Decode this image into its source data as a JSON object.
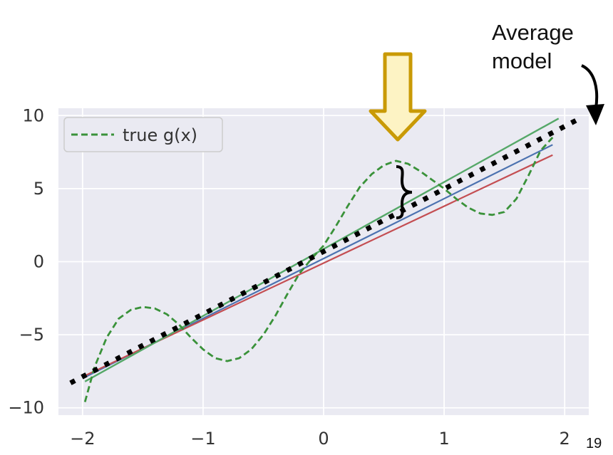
{
  "annotation": {
    "average_model": "Average\nmodel"
  },
  "page_number": "19",
  "legend": {
    "true_label": "true g(x)",
    "placement": "top-left"
  },
  "colors": {
    "background": "#eaeaf2",
    "grid": "#ffffff",
    "true": "#3a923a",
    "model_blue": "#4c72b0",
    "model_red": "#c44e52",
    "model_green": "#55a868",
    "average": "#000000",
    "arrow_fill": "#fdf3c4",
    "arrow_stroke": "#c99a06"
  },
  "chart_data": {
    "type": "line",
    "title": "",
    "xlabel": "",
    "ylabel": "",
    "xlim": [
      -2.2,
      2.2
    ],
    "ylim": [
      -10.5,
      10.5
    ],
    "grid": true,
    "x_ticks": [
      -2,
      -1,
      0,
      1,
      2
    ],
    "x_tick_labels": [
      "−2",
      "−1",
      "0",
      "1",
      "2"
    ],
    "y_ticks": [
      -10,
      -5,
      0,
      5,
      10
    ],
    "y_tick_labels": [
      "−10",
      "−5",
      "0",
      "5",
      "10"
    ],
    "series": [
      {
        "name": "true g(x)",
        "style": "dashed",
        "x": [
          -1.98,
          -1.9,
          -1.8,
          -1.7,
          -1.6,
          -1.5,
          -1.4,
          -1.3,
          -1.2,
          -1.1,
          -1.0,
          -0.9,
          -0.8,
          -0.7,
          -0.6,
          -0.5,
          -0.4,
          -0.3,
          -0.2,
          -0.1,
          0.0,
          0.1,
          0.2,
          0.3,
          0.4,
          0.5,
          0.6,
          0.7,
          0.8,
          0.9,
          1.0,
          1.1,
          1.2,
          1.3,
          1.4,
          1.5,
          1.6,
          1.7,
          1.8,
          1.9
        ],
        "y": [
          -9.6,
          -7.2,
          -5.2,
          -3.9,
          -3.3,
          -3.1,
          -3.2,
          -3.6,
          -4.3,
          -5.2,
          -6.0,
          -6.6,
          -6.8,
          -6.6,
          -6.0,
          -5.0,
          -3.7,
          -2.2,
          -0.8,
          0.2,
          1.1,
          2.4,
          3.8,
          5.1,
          6.0,
          6.6,
          6.9,
          6.7,
          6.2,
          5.6,
          5.0,
          4.3,
          3.7,
          3.3,
          3.2,
          3.4,
          4.3,
          5.9,
          7.6,
          8.5
        ]
      },
      {
        "x": [
          -1.98,
          1.9
        ],
        "y": [
          -7.9,
          8.0
        ]
      },
      {
        "x": [
          -1.98,
          1.9
        ],
        "y": [
          -7.8,
          7.3
        ]
      },
      {
        "x": [
          -1.98,
          1.95
        ],
        "y": [
          -8.2,
          9.8
        ]
      },
      {
        "style": "dotted",
        "x": [
          -2.1,
          2.15
        ],
        "y": [
          -8.3,
          9.9
        ]
      }
    ]
  }
}
